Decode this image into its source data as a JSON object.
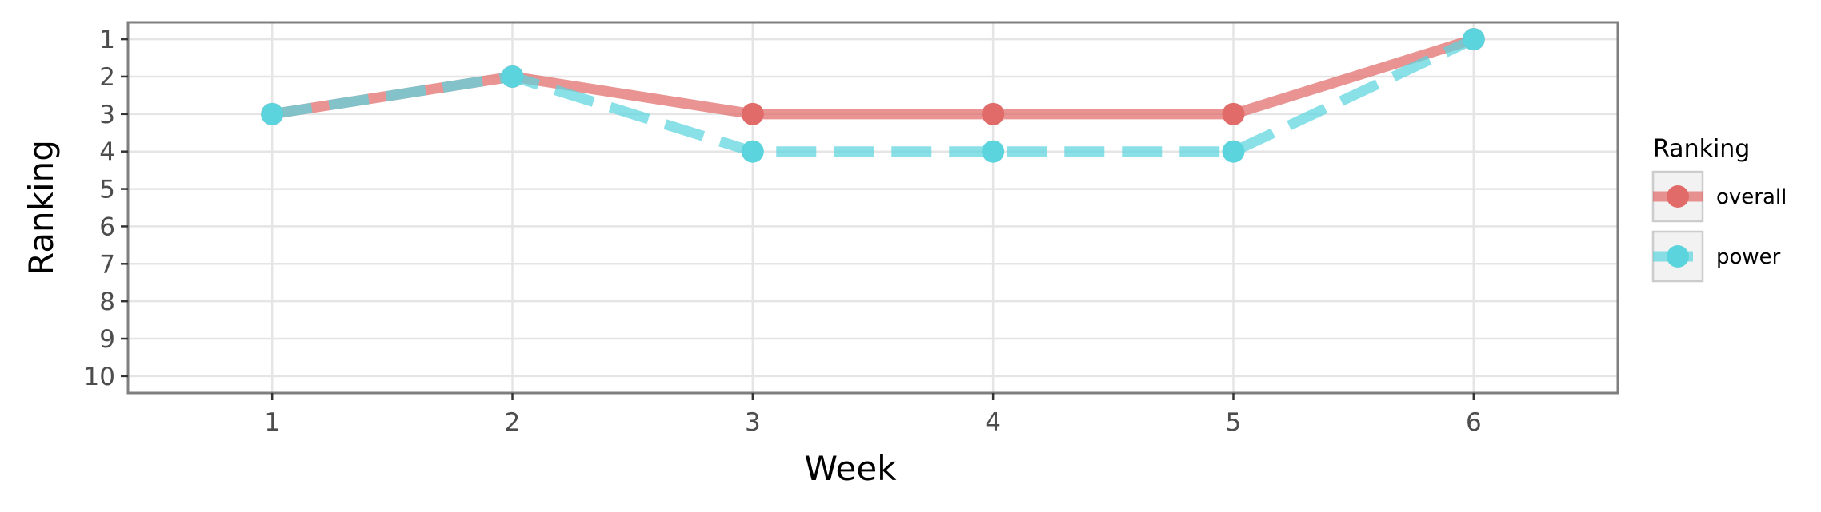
{
  "chart_data": {
    "type": "line",
    "xlabel": "Week",
    "ylabel": "Ranking",
    "x": [
      1,
      2,
      3,
      4,
      5,
      6
    ],
    "xlim": [
      0.4,
      6.6
    ],
    "ylim": [
      10.45,
      0.55
    ],
    "y_reversed": true,
    "x_ticks": [
      "1",
      "2",
      "3",
      "4",
      "5",
      "6"
    ],
    "y_ticks": [
      "1",
      "2",
      "3",
      "4",
      "5",
      "6",
      "7",
      "8",
      "9",
      "10"
    ],
    "grid": true,
    "legend": {
      "title": "Ranking",
      "position": "right"
    },
    "series": [
      {
        "name": "overall",
        "values": [
          3,
          2,
          3,
          3,
          3,
          1
        ],
        "color": "#E06B68",
        "line_style": "solid"
      },
      {
        "name": "power",
        "values": [
          3,
          2,
          4,
          4,
          4,
          1
        ],
        "color": "#5CD4DE",
        "line_style": "dashed"
      }
    ]
  }
}
